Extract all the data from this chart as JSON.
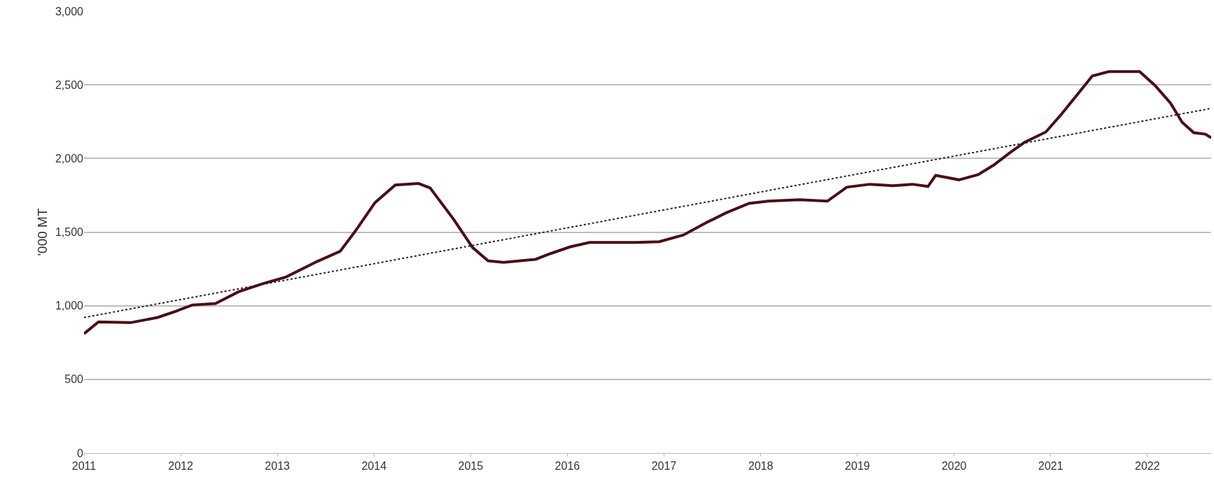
{
  "chart_data": {
    "type": "line",
    "ylabel": "'000 MT",
    "xlim": [
      2011,
      2022.66
    ],
    "xticks": [
      2011,
      2012,
      2013,
      2014,
      2015,
      2016,
      2017,
      2018,
      2019,
      2020,
      2021,
      2022
    ],
    "ylim": [
      0,
      3000
    ],
    "yticks": [
      {
        "value": 0,
        "label": "0"
      },
      {
        "value": 500,
        "label": "500"
      },
      {
        "value": 1000,
        "label": "1,000"
      },
      {
        "value": 1500,
        "label": "1,500"
      },
      {
        "value": 2000,
        "label": "2,000"
      },
      {
        "value": 2500,
        "label": "2,500"
      },
      {
        "value": 3000,
        "label": "3,000"
      }
    ],
    "grid": "y",
    "series": [
      {
        "color": "#4a0e14",
        "line_style": "solid",
        "x": [
          2011.0,
          2011.15,
          2011.48,
          2011.76,
          2011.96,
          2012.12,
          2012.36,
          2012.6,
          2012.85,
          2013.09,
          2013.41,
          2013.65,
          2013.81,
          2014.01,
          2014.22,
          2014.46,
          2014.58,
          2014.82,
          2015.02,
          2015.18,
          2015.34,
          2015.67,
          2015.83,
          2016.03,
          2016.23,
          2016.47,
          2016.71,
          2016.95,
          2017.2,
          2017.44,
          2017.64,
          2017.88,
          2018.08,
          2018.4,
          2018.69,
          2018.89,
          2019.13,
          2019.37,
          2019.57,
          2019.73,
          2019.81,
          2020.05,
          2020.25,
          2020.41,
          2020.57,
          2020.73,
          2020.95,
          2021.11,
          2021.27,
          2021.43,
          2021.6,
          2021.92,
          2022.08,
          2022.24,
          2022.36,
          2022.48,
          2022.6,
          2022.66
        ],
        "values": [
          810,
          890,
          885,
          920,
          965,
          1005,
          1015,
          1095,
          1150,
          1195,
          1300,
          1370,
          1510,
          1700,
          1820,
          1830,
          1800,
          1590,
          1395,
          1305,
          1295,
          1315,
          1355,
          1400,
          1430,
          1430,
          1430,
          1435,
          1480,
          1565,
          1630,
          1695,
          1710,
          1720,
          1710,
          1805,
          1825,
          1815,
          1825,
          1810,
          1885,
          1855,
          1890,
          1955,
          2035,
          2110,
          2180,
          2300,
          2430,
          2560,
          2590,
          2590,
          2495,
          2375,
          2245,
          2175,
          2165,
          2140
        ]
      },
      {
        "type": "line",
        "color": "#222222",
        "line_style": "dotted",
        "x": [
          2011.0,
          2022.66
        ],
        "values": [
          920,
          2340
        ]
      }
    ]
  }
}
